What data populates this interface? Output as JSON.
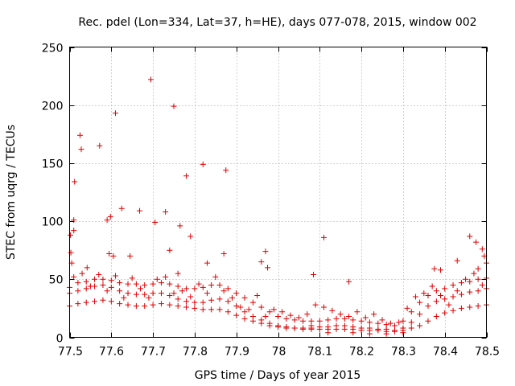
{
  "chart_data": {
    "type": "scatter",
    "title": "Rec. pdel (Lon=334, Lat=37, h=HE), days 077-078, 2015, window 002",
    "xlabel": "GPS time / Days of year 2015",
    "ylabel": "STEC from uqrg / TECUs",
    "xlim": [
      77.5,
      78.5
    ],
    "ylim": [
      0,
      250
    ],
    "x_ticks": [
      77.5,
      77.6,
      77.7,
      77.8,
      77.9,
      78,
      78.1,
      78.2,
      78.3,
      78.4,
      78.5
    ],
    "x_tick_labels": [
      "77.5",
      "77.6",
      "77.7",
      "77.8",
      "77.9",
      "78",
      "78.1",
      "78.2",
      "78.3",
      "78.4",
      "78.5"
    ],
    "y_ticks": [
      0,
      50,
      100,
      150,
      200,
      250
    ],
    "y_tick_labels": [
      "0",
      "50",
      "100",
      "150",
      "200",
      "250"
    ],
    "grid": true,
    "marker": "+",
    "color": "#e00000",
    "outliers": [
      [
        77.502,
        88
      ],
      [
        77.503,
        73
      ],
      [
        77.505,
        64
      ],
      [
        77.51,
        101
      ],
      [
        77.51,
        92
      ],
      [
        77.512,
        134
      ],
      [
        77.525,
        174
      ],
      [
        77.528,
        162
      ],
      [
        77.542,
        60
      ],
      [
        77.572,
        165
      ],
      [
        77.59,
        101
      ],
      [
        77.595,
        72
      ],
      [
        77.605,
        70
      ],
      [
        77.61,
        193
      ],
      [
        77.598,
        104
      ],
      [
        77.625,
        111
      ],
      [
        77.645,
        70
      ],
      [
        77.668,
        109
      ],
      [
        77.695,
        222
      ],
      [
        77.705,
        99
      ],
      [
        77.73,
        108
      ],
      [
        77.75,
        199
      ],
      [
        77.765,
        96
      ],
      [
        77.78,
        139
      ],
      [
        77.79,
        87
      ],
      [
        77.82,
        149
      ],
      [
        77.83,
        64
      ],
      [
        77.87,
        72
      ],
      [
        77.875,
        144
      ],
      [
        77.96,
        65
      ],
      [
        77.97,
        74
      ],
      [
        77.975,
        60
      ],
      [
        78.085,
        54
      ],
      [
        78.11,
        86
      ],
      [
        78.17,
        48
      ],
      [
        78.375,
        59
      ],
      [
        78.39,
        58
      ],
      [
        78.43,
        66
      ],
      [
        78.46,
        87
      ],
      [
        78.475,
        82
      ],
      [
        78.49,
        76
      ],
      [
        78.495,
        70
      ],
      [
        78.48,
        59
      ],
      [
        78.5,
        64
      ],
      [
        77.74,
        75
      ],
      [
        77.76,
        55
      ]
    ],
    "series": [
      {
        "name": "track-upper",
        "points": [
          [
            77.5,
            43
          ],
          [
            77.52,
            47
          ],
          [
            77.54,
            48
          ],
          [
            77.56,
            50
          ],
          [
            77.58,
            50
          ],
          [
            77.6,
            49
          ],
          [
            77.62,
            47
          ],
          [
            77.64,
            46
          ],
          [
            77.66,
            46
          ],
          [
            77.68,
            45
          ],
          [
            77.7,
            46
          ],
          [
            77.72,
            47
          ],
          [
            77.74,
            46
          ],
          [
            77.76,
            44
          ],
          [
            77.78,
            42
          ],
          [
            77.8,
            42
          ],
          [
            77.82,
            43
          ],
          [
            77.84,
            45
          ],
          [
            77.86,
            45
          ],
          [
            77.88,
            42
          ],
          [
            77.9,
            38
          ],
          [
            77.92,
            34
          ],
          [
            77.94,
            30
          ],
          [
            77.96,
            26
          ],
          [
            77.98,
            22
          ],
          [
            78.0,
            18
          ],
          [
            78.02,
            16
          ],
          [
            78.04,
            15
          ],
          [
            78.06,
            14
          ],
          [
            78.08,
            14
          ],
          [
            78.1,
            14
          ],
          [
            78.12,
            15
          ],
          [
            78.14,
            16
          ],
          [
            78.16,
            16
          ],
          [
            78.18,
            15
          ],
          [
            78.2,
            14
          ],
          [
            78.22,
            13
          ],
          [
            78.24,
            12
          ],
          [
            78.26,
            11
          ],
          [
            78.28,
            10
          ],
          [
            78.3,
            14
          ],
          [
            78.32,
            22
          ],
          [
            78.34,
            30
          ],
          [
            78.36,
            36
          ],
          [
            78.38,
            40
          ],
          [
            78.4,
            42
          ],
          [
            78.42,
            45
          ],
          [
            78.44,
            47
          ],
          [
            78.46,
            48
          ],
          [
            78.48,
            50
          ],
          [
            78.5,
            51
          ]
        ]
      },
      {
        "name": "track-middle",
        "points": [
          [
            77.5,
            38
          ],
          [
            77.52,
            40
          ],
          [
            77.54,
            42
          ],
          [
            77.56,
            44
          ],
          [
            77.58,
            45
          ],
          [
            77.6,
            43
          ],
          [
            77.62,
            40
          ],
          [
            77.64,
            38
          ],
          [
            77.66,
            37
          ],
          [
            77.68,
            37
          ],
          [
            77.7,
            38
          ],
          [
            77.72,
            38
          ],
          [
            77.74,
            36
          ],
          [
            77.76,
            33
          ],
          [
            77.78,
            31
          ],
          [
            77.8,
            30
          ],
          [
            77.82,
            30
          ],
          [
            77.84,
            32
          ],
          [
            77.86,
            33
          ],
          [
            77.88,
            31
          ],
          [
            77.9,
            27
          ],
          [
            77.92,
            22
          ],
          [
            77.94,
            18
          ],
          [
            77.96,
            15
          ],
          [
            77.98,
            12
          ],
          [
            78.0,
            10
          ],
          [
            78.02,
            9
          ],
          [
            78.04,
            8
          ],
          [
            78.06,
            8
          ],
          [
            78.08,
            8
          ],
          [
            78.1,
            9
          ],
          [
            78.12,
            9
          ],
          [
            78.14,
            10
          ],
          [
            78.16,
            10
          ],
          [
            78.18,
            9
          ],
          [
            78.2,
            8
          ],
          [
            78.22,
            8
          ],
          [
            78.24,
            7
          ],
          [
            78.26,
            7
          ],
          [
            78.28,
            6
          ],
          [
            78.3,
            8
          ],
          [
            78.32,
            13
          ],
          [
            78.34,
            20
          ],
          [
            78.36,
            27
          ],
          [
            78.38,
            31
          ],
          [
            78.4,
            33
          ],
          [
            78.42,
            35
          ],
          [
            78.44,
            37
          ],
          [
            78.46,
            39
          ],
          [
            78.48,
            40
          ],
          [
            78.5,
            42
          ]
        ]
      },
      {
        "name": "track-lower",
        "points": [
          [
            77.5,
            27
          ],
          [
            77.52,
            29
          ],
          [
            77.54,
            30
          ],
          [
            77.56,
            31
          ],
          [
            77.58,
            32
          ],
          [
            77.6,
            31
          ],
          [
            77.62,
            29
          ],
          [
            77.64,
            28
          ],
          [
            77.66,
            27
          ],
          [
            77.68,
            27
          ],
          [
            77.7,
            28
          ],
          [
            77.72,
            29
          ],
          [
            77.74,
            28
          ],
          [
            77.76,
            27
          ],
          [
            77.78,
            26
          ],
          [
            77.8,
            25
          ],
          [
            77.82,
            24
          ],
          [
            77.84,
            24
          ],
          [
            77.86,
            24
          ],
          [
            77.88,
            22
          ],
          [
            77.9,
            19
          ],
          [
            77.92,
            16
          ],
          [
            77.94,
            14
          ],
          [
            77.96,
            12
          ],
          [
            77.98,
            10
          ],
          [
            78.0,
            9
          ],
          [
            78.02,
            8
          ],
          [
            78.04,
            8
          ],
          [
            78.06,
            7
          ],
          [
            78.08,
            7
          ],
          [
            78.1,
            7
          ],
          [
            78.12,
            7
          ],
          [
            78.14,
            7
          ],
          [
            78.16,
            7
          ],
          [
            78.18,
            7
          ],
          [
            78.2,
            6
          ],
          [
            78.22,
            6
          ],
          [
            78.24,
            6
          ],
          [
            78.26,
            5
          ],
          [
            78.28,
            5
          ],
          [
            78.3,
            6
          ],
          [
            78.32,
            8
          ],
          [
            78.34,
            10
          ],
          [
            78.36,
            14
          ],
          [
            78.38,
            18
          ],
          [
            78.4,
            21
          ],
          [
            78.42,
            23
          ],
          [
            78.44,
            25
          ],
          [
            78.46,
            26
          ],
          [
            78.48,
            27
          ],
          [
            78.5,
            28
          ]
        ]
      },
      {
        "name": "track-scatter",
        "points": [
          [
            77.51,
            52
          ],
          [
            77.53,
            55
          ],
          [
            77.55,
            44
          ],
          [
            77.57,
            54
          ],
          [
            77.59,
            40
          ],
          [
            77.61,
            53
          ],
          [
            77.63,
            34
          ],
          [
            77.65,
            51
          ],
          [
            77.67,
            42
          ],
          [
            77.69,
            34
          ],
          [
            77.71,
            50
          ],
          [
            77.73,
            52
          ],
          [
            77.75,
            38
          ],
          [
            77.77,
            40
          ],
          [
            77.79,
            35
          ],
          [
            77.81,
            46
          ],
          [
            77.83,
            38
          ],
          [
            77.85,
            52
          ],
          [
            77.87,
            40
          ],
          [
            77.89,
            34
          ],
          [
            77.91,
            26
          ],
          [
            77.93,
            24
          ],
          [
            77.95,
            36
          ],
          [
            77.97,
            18
          ],
          [
            77.99,
            24
          ],
          [
            78.01,
            22
          ],
          [
            78.03,
            19
          ],
          [
            78.05,
            17
          ],
          [
            78.07,
            20
          ],
          [
            78.09,
            28
          ],
          [
            78.11,
            26
          ],
          [
            78.13,
            23
          ],
          [
            78.15,
            20
          ],
          [
            78.17,
            18
          ],
          [
            78.19,
            22
          ],
          [
            78.21,
            17
          ],
          [
            78.23,
            20
          ],
          [
            78.25,
            15
          ],
          [
            78.27,
            12
          ],
          [
            78.29,
            13
          ],
          [
            78.31,
            25
          ],
          [
            78.33,
            35
          ],
          [
            78.35,
            38
          ],
          [
            78.37,
            44
          ],
          [
            78.39,
            36
          ],
          [
            78.41,
            28
          ],
          [
            78.43,
            40
          ],
          [
            78.45,
            50
          ],
          [
            78.47,
            55
          ],
          [
            78.49,
            45
          ],
          [
            78.08,
            10
          ],
          [
            78.12,
            4
          ],
          [
            78.18,
            4
          ],
          [
            78.22,
            3
          ],
          [
            78.26,
            3
          ],
          [
            78.3,
            4
          ]
        ]
      }
    ]
  }
}
